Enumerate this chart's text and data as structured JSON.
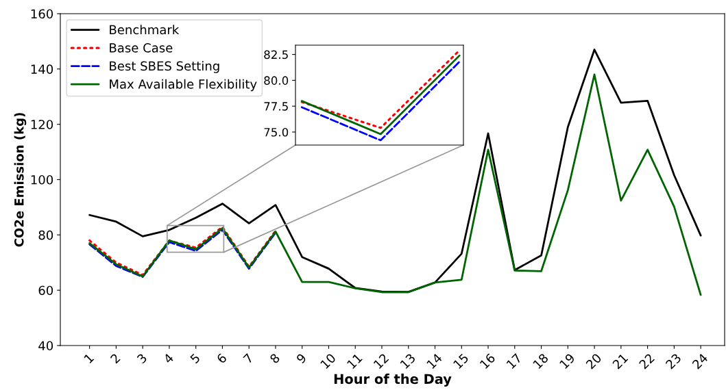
{
  "chart_data": [
    {
      "type": "line",
      "xlabel": "Hour of the Day",
      "ylabel": "CO2e Emission (kg)",
      "x": [
        1,
        2,
        3,
        4,
        5,
        6,
        7,
        8,
        9,
        10,
        11,
        12,
        13,
        14,
        15,
        16,
        17,
        18,
        19,
        20,
        21,
        22,
        23,
        24
      ],
      "xlim": [
        -0.1,
        24.9
      ],
      "xticks": [
        1,
        2,
        3,
        4,
        5,
        6,
        7,
        8,
        9,
        10,
        11,
        12,
        13,
        14,
        15,
        16,
        17,
        18,
        19,
        20,
        21,
        22,
        23,
        24
      ],
      "ylim": [
        40,
        160
      ],
      "yticks": [
        40,
        60,
        80,
        100,
        120,
        140,
        160
      ],
      "grid": false,
      "legend": "top left",
      "series": [
        {
          "name": "Benchmark",
          "color": "#000000",
          "line_style": "solid",
          "values": [
            87.2,
            84.8,
            79.5,
            81.8,
            86.2,
            91.3,
            84.2,
            90.8,
            72,
            67.8,
            60.8,
            59.5,
            59.4,
            62.8,
            73.2,
            116.7,
            67.3,
            72.6,
            119,
            147,
            127.8,
            128.5,
            101.6,
            79.8
          ]
        },
        {
          "name": "Base Case",
          "color": "#ff0000",
          "line_style": "dotted",
          "values": [
            78,
            70,
            65.5,
            77.9,
            75.4,
            82.9,
            68.5,
            81.5,
            null,
            null,
            null,
            null,
            null,
            null,
            null,
            null,
            null,
            null,
            null,
            null,
            null,
            null,
            null,
            null
          ]
        },
        {
          "name": "Best SBES Setting",
          "color": "#0000ff",
          "line_style": "dashed",
          "values": [
            76.6,
            68.8,
            64.8,
            77.4,
            74.2,
            81.8,
            67.8,
            80.8,
            null,
            null,
            null,
            null,
            null,
            null,
            null,
            null,
            null,
            null,
            null,
            null,
            null,
            null,
            null,
            null
          ]
        },
        {
          "name": "Max Available Flexibility",
          "color": "#006400",
          "line_style": "solid",
          "values": [
            77,
            69.4,
            65,
            78,
            74.8,
            82.4,
            68.2,
            81.2,
            63,
            63,
            60.7,
            59.3,
            59.3,
            62.8,
            63.8,
            110.8,
            67.1,
            66.9,
            96.2,
            138,
            92.4,
            110.8,
            90.2,
            58.3
          ]
        }
      ]
    },
    {
      "type": "line",
      "categories": [
        null,
        null,
        null
      ],
      "ylim": [
        73.74,
        83.4
      ],
      "yticks": [
        {
          "value": 75,
          "label": "75.0"
        },
        {
          "value": 77.5,
          "label": "77.5"
        },
        {
          "value": 80,
          "label": "80.0"
        },
        {
          "value": 82.5,
          "label": "82.5"
        }
      ],
      "tick_labels": "y",
      "grid": false,
      "series": [
        {
          "color": "#ff0000",
          "line_style": "dotted",
          "values": [
            77.9,
            75.4,
            82.9
          ]
        },
        {
          "color": "#0000ff",
          "line_style": "dashed",
          "values": [
            77.4,
            74.2,
            81.8
          ]
        },
        {
          "color": "#006400",
          "line_style": "solid",
          "values": [
            78,
            74.8,
            82.4
          ]
        }
      ]
    }
  ]
}
